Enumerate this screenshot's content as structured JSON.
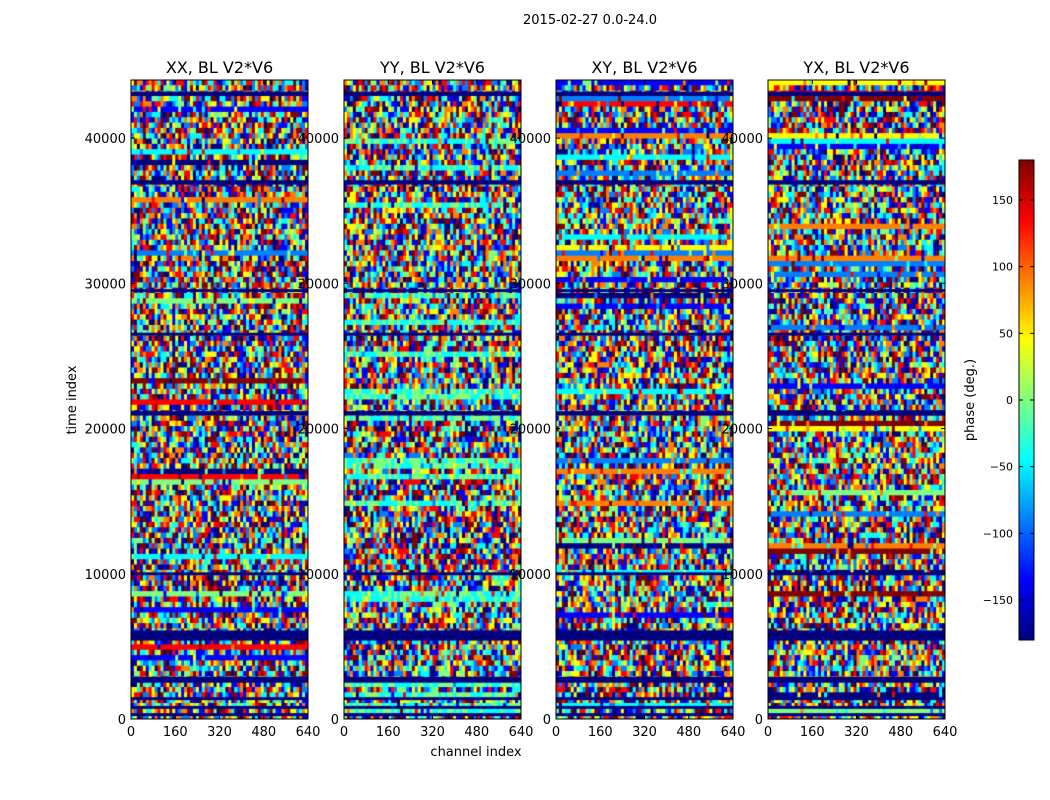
{
  "figure_title": "2015-02-27 0.0-24.0",
  "colors": {
    "colormap": [
      "#00007f",
      "#0000ff",
      "#007fff",
      "#00ffff",
      "#7fff7f",
      "#ffff00",
      "#ff7f00",
      "#ff0000",
      "#7f0000"
    ]
  },
  "chart_data": {
    "type": "heatmap",
    "xlabel": "channel index",
    "ylabel": "time index",
    "xlim": [
      0,
      640
    ],
    "ylim": [
      0,
      44000
    ],
    "x_ticks": [
      0,
      160,
      320,
      480,
      640
    ],
    "y_ticks": [
      0,
      10000,
      20000,
      30000,
      40000
    ],
    "panels": [
      {
        "title": "XX, BL V2*V6"
      },
      {
        "title": "YY, BL V2*V6"
      },
      {
        "title": "XY, BL V2*V6"
      },
      {
        "title": "YX, BL V2*V6"
      }
    ],
    "colorbar": {
      "label": "phase (deg.)",
      "range": [
        -180,
        180
      ],
      "ticks": [
        -150,
        -100,
        -50,
        0,
        50,
        100,
        150
      ],
      "tick_labels": [
        "−150",
        "−100",
        "−50",
        "0",
        "50",
        "100",
        "150"
      ]
    },
    "flagged_time_bands": [
      [
        200,
        400
      ],
      [
        700,
        900
      ],
      [
        1300,
        1500
      ],
      [
        2500,
        2900
      ],
      [
        5400,
        6100
      ],
      [
        9900,
        10100
      ],
      [
        20900,
        21200
      ],
      [
        26400,
        26600
      ],
      [
        29400,
        29600
      ],
      [
        36800,
        37100
      ],
      [
        42900,
        43200
      ]
    ]
  }
}
